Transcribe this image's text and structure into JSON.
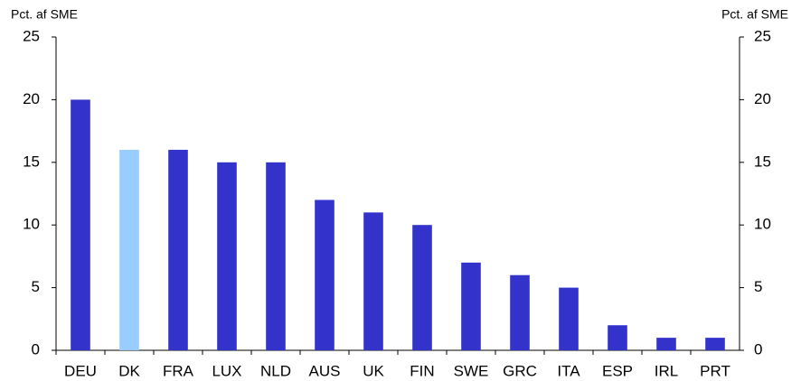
{
  "chart_data": {
    "type": "bar",
    "y_axis_label": "Pct. af SME",
    "y2_axis_label": "Pct. af SME",
    "categories": [
      "DEU",
      "DK",
      "FRA",
      "LUX",
      "NLD",
      "AUS",
      "UK",
      "FIN",
      "SWE",
      "GRC",
      "ITA",
      "ESP",
      "IRL",
      "PRT"
    ],
    "values": [
      20,
      16,
      16,
      15,
      15,
      12,
      11,
      10,
      7,
      6,
      5,
      2,
      1,
      1
    ],
    "colors": [
      "#3333cc",
      "#99ccff",
      "#3333cc",
      "#3333cc",
      "#3333cc",
      "#3333cc",
      "#3333cc",
      "#3333cc",
      "#3333cc",
      "#3333cc",
      "#3333cc",
      "#3333cc",
      "#3333cc",
      "#3333cc"
    ],
    "ylim": [
      0,
      25
    ],
    "yticks": [
      0,
      5,
      10,
      15,
      20,
      25
    ],
    "y2lim": [
      0,
      25
    ],
    "y2ticks": [
      0,
      5,
      10,
      15,
      20,
      25
    ],
    "grid": false
  }
}
